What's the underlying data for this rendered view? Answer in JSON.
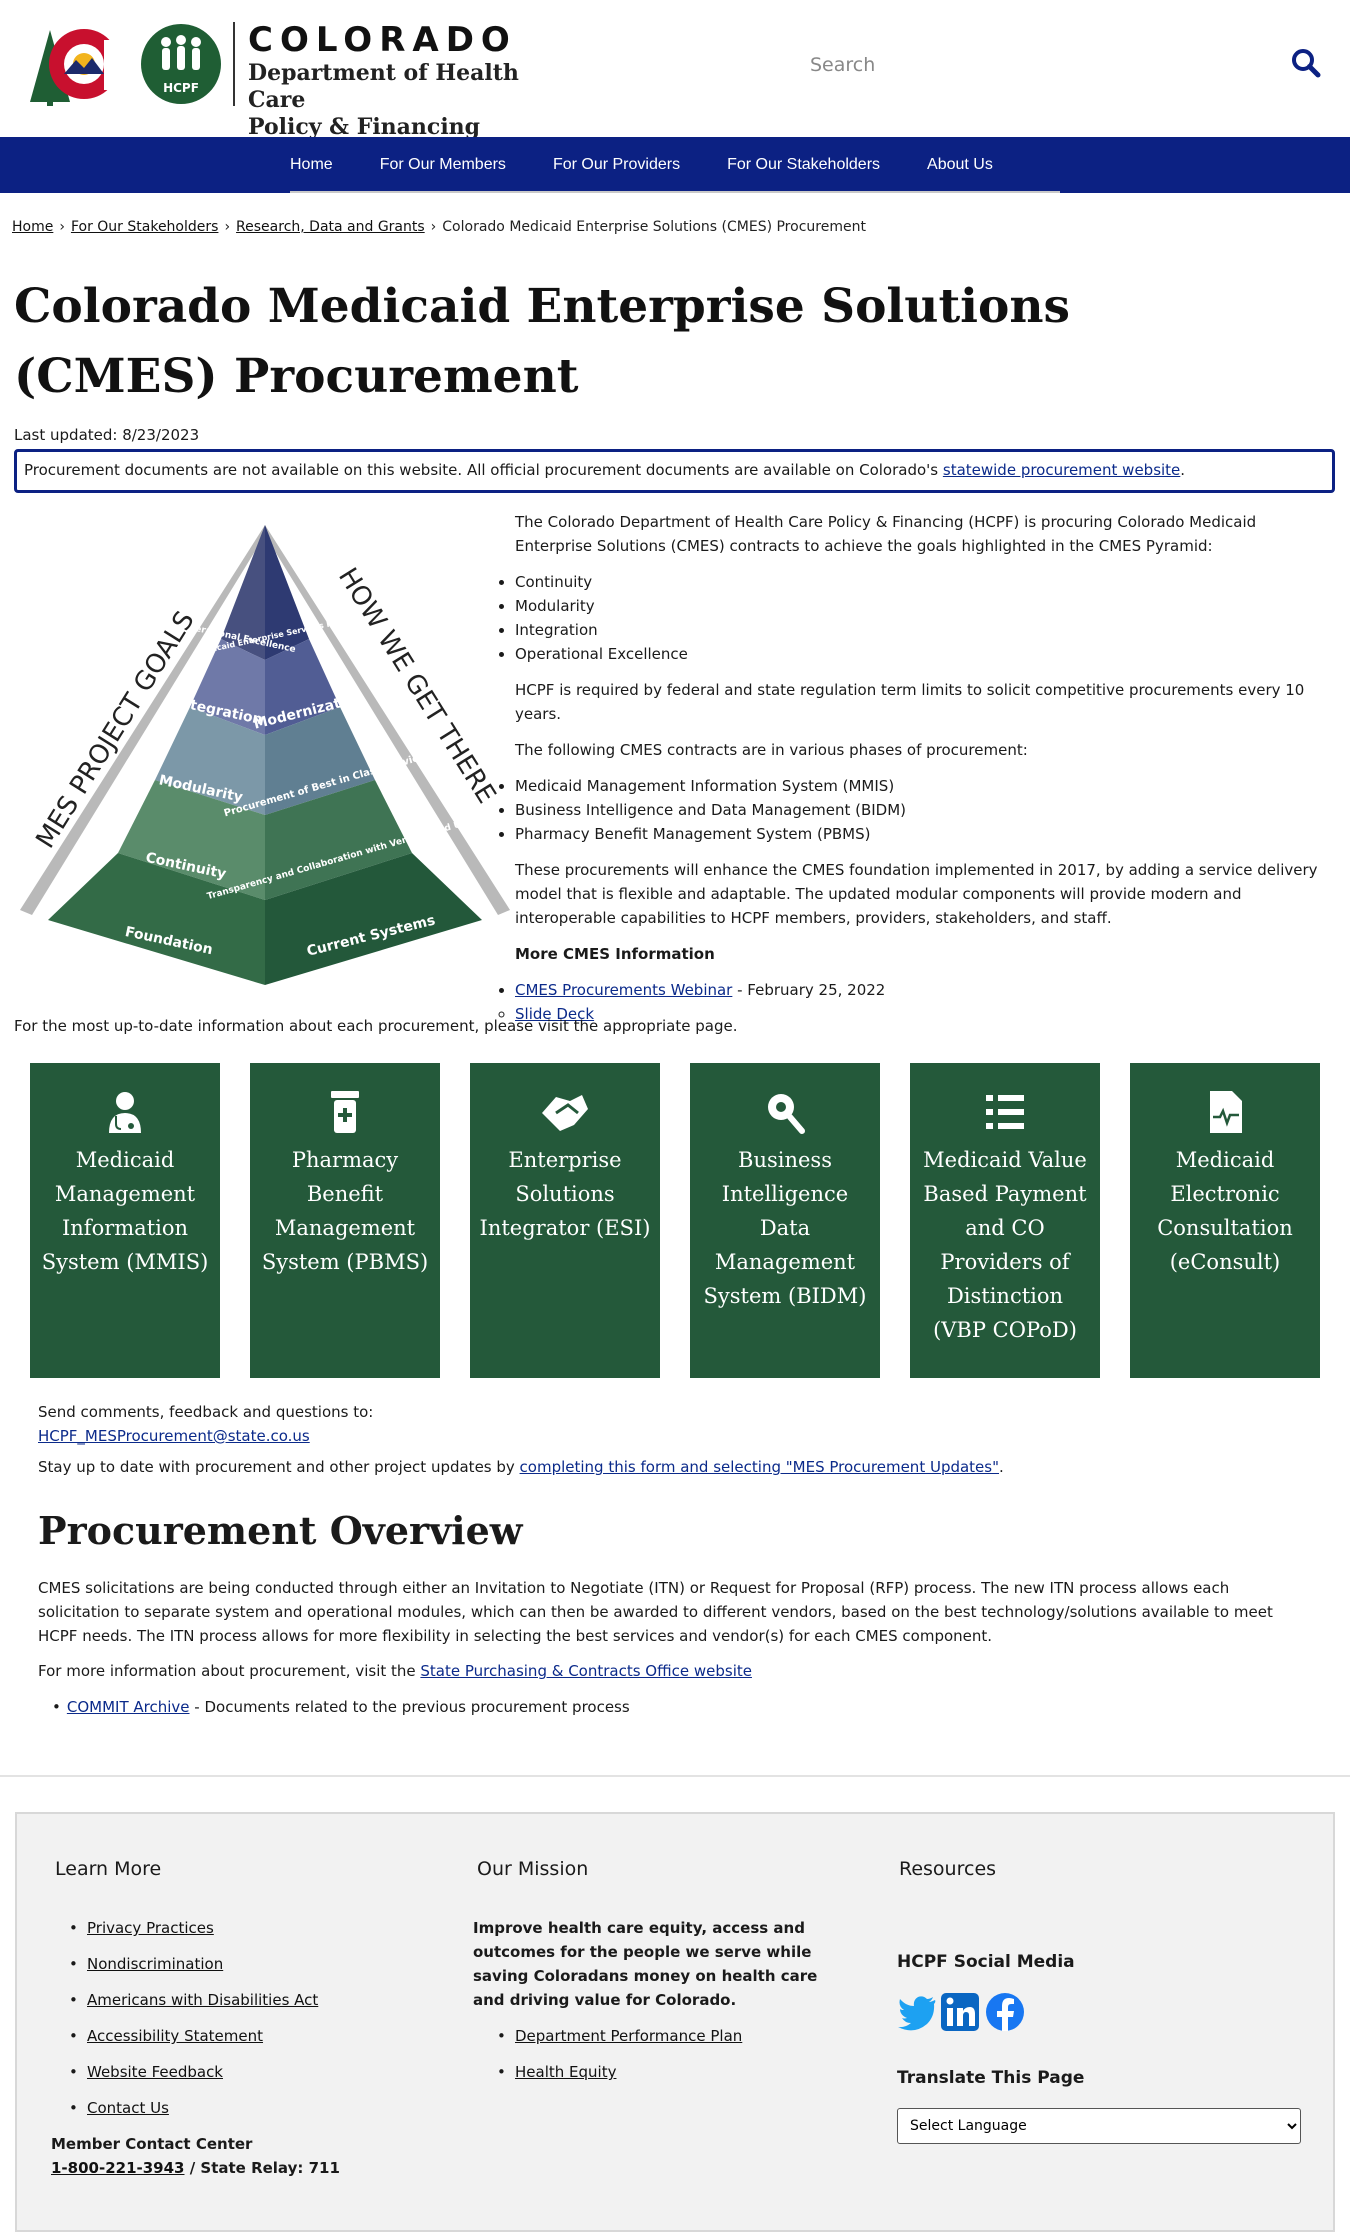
{
  "header": {
    "state": "COLORADO",
    "dept_line1": "Department of Health Care",
    "dept_line2": "Policy & Financing",
    "badge_text": "HCPF",
    "search_placeholder": "Search"
  },
  "nav": {
    "items": [
      "Home",
      "For Our Members",
      "For Our Providers",
      "For Our Stakeholders",
      "About Us"
    ]
  },
  "breadcrumb": {
    "items": [
      "Home",
      "For Our Stakeholders",
      "Research, Data and Grants"
    ],
    "current": "Colorado Medicaid Enterprise Solutions (CMES) Procurement"
  },
  "page": {
    "title": "Colorado Medicaid Enterprise Solutions (CMES) Procurement",
    "updated": "Last updated: 8/23/2023",
    "notice_text": "Procurement documents are not available on this website. All official procurement documents are available on Colorado's",
    "notice_link": "statewide procurement website",
    "notice_end": "."
  },
  "pyramid": {
    "left_caption": "MES PROJECT GOALS",
    "right_caption": "HOW WE GET THERE",
    "left_layers": [
      "Operational Excellence",
      "Integration",
      "Modularity",
      "Continuity",
      "Foundation"
    ],
    "right_layers": [
      "Medicaid Enterprise Services Procurement",
      "Modernization",
      "Procurement of Best in Class Services",
      "Transparency and Collaboration with Vendors and Users",
      "Current Systems"
    ]
  },
  "intro": {
    "p1": "The Colorado Department of Health Care Policy & Financing (HCPF)  is procuring Colorado Medicaid Enterprise Solutions (CMES) contracts to achieve the goals highlighted in the CMES Pyramid:",
    "goals": [
      "Continuity",
      "Modularity",
      "Integration",
      "Operational Excellence"
    ],
    "p2": "HCPF is required by federal and state regulation term limits to solicit competitive procurements every 10 years.",
    "p3": "The following CMES contracts are in various phases of procurement:",
    "contracts": [
      "Medicaid Management Information System (MMIS)",
      "Business Intelligence and Data Management (BIDM)",
      "Pharmacy Benefit Management System (PBMS)"
    ],
    "p4": "These procurements will enhance the CMES foundation implemented in 2017, by adding a service delivery model that is flexible and adaptable. The updated modular components will provide modern and interoperable capabilities to HCPF members, providers, stakeholders, and staff.",
    "more_head": "More CMES Information",
    "webinar_link": "CMES Procurements Webinar",
    "webinar_date": " - February 25, 2022",
    "slide_link": "Slide Deck"
  },
  "most_up": "For the most up-to-date information about each procurement, please visit the appropriate page.",
  "cards": [
    {
      "label": "Medicaid Management Information System (MMIS)",
      "icon": "doctor-icon"
    },
    {
      "label": "Pharmacy Benefit Management System (PBMS)",
      "icon": "prescription-bottle-icon"
    },
    {
      "label": "Enterprise Solutions Integrator (ESI)",
      "icon": "handshake-icon"
    },
    {
      "label": "Business Intelligence Data Management System (BIDM)",
      "icon": "search-data-icon"
    },
    {
      "label": "Medicaid Value Based Payment and CO Providers of Distinction (VBP COPoD)",
      "icon": "list-icon"
    },
    {
      "label": "Medicaid Electronic Consultation (eConsult)",
      "icon": "medical-file-icon"
    }
  ],
  "comments": {
    "text": "Send comments, feedback and questions to:",
    "email": "HCPF_MESProcurement@state.co.us",
    "stay_text": "Stay up to date with procurement and other project updates by ",
    "stay_link": "completing this form and selecting \"MES Procurement Updates\"",
    "stay_end": "."
  },
  "overview": {
    "title": "Procurement Overview",
    "text": "CMES solicitations are being conducted through either an Invitation to Negotiate (ITN) or Request for Proposal (RFP) process. The new ITN process allows each solicitation to separate system and operational modules, which can then be awarded to different vendors, based on the best technology/solutions available to meet HCPF needs. The ITN process allows for more flexibility in selecting the best services and vendor(s) for each CMES component.",
    "more_text": "For more information about procurement, visit the ",
    "more_link": "State Purchasing & Contracts Office website",
    "commit_link": "COMMIT Archive",
    "commit_text": " - Documents related to the previous procurement process"
  },
  "footer": {
    "learn_head": "Learn More",
    "learn_links": [
      "Privacy Practices",
      "Nondiscrimination",
      "Americans with Disabilities Act",
      "Accessibility Statement",
      "Website Feedback",
      "Contact Us"
    ],
    "mission_head": "Our Mission",
    "mission_text": "Improve health care equity, access and outcomes for the people we serve while saving Coloradans money on health care and driving value for Colorado.",
    "mission_links": [
      "Department Performance Plan",
      "Health Equity"
    ],
    "resources_head": "Resources",
    "social_head": "HCPF Social Media",
    "translate_head": "Translate This Page",
    "language_select": "Select Language",
    "contact_label": "Member Contact Center",
    "contact_phone": "1-800-221-3943",
    "contact_relay": " / State Relay: 711"
  },
  "colors": {
    "nav": "#0c2183",
    "card": "#24593a",
    "link": "#0b2a8a"
  }
}
